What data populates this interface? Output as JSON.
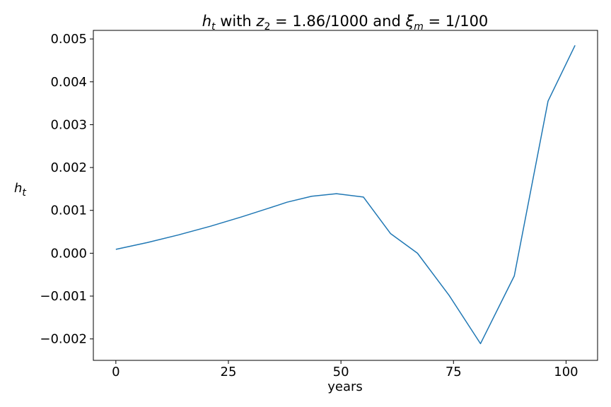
{
  "chart_data": {
    "type": "line",
    "title": {
      "var": "h",
      "var_sub": "t",
      "part1": " with ",
      "z": "z",
      "z_sub": "2",
      "z_val": " = 1.86/1000",
      "part2": " and ",
      "xi": "ξ",
      "xi_sub": "m",
      "xi_val": " = 1/100"
    },
    "xlabel": "years",
    "ylabel": {
      "var": "h",
      "sub": "t"
    },
    "xlim": [
      -5,
      107
    ],
    "ylim": [
      -0.0025,
      0.0052
    ],
    "x_ticks": [
      0,
      25,
      50,
      75,
      100
    ],
    "x_tick_labels": [
      "0",
      "25",
      "50",
      "75",
      "100"
    ],
    "y_ticks": [
      -0.002,
      -0.001,
      0.0,
      0.001,
      0.002,
      0.003,
      0.004,
      0.005
    ],
    "y_tick_labels": [
      "−0.002",
      "−0.001",
      "0.000",
      "0.001",
      "0.002",
      "0.003",
      "0.004",
      "0.005"
    ],
    "grid": false,
    "series": [
      {
        "color": "#1f77b4",
        "x": [
          0,
          7,
          14,
          21,
          28,
          36,
          38,
          43.5,
          49,
          55,
          61,
          67,
          74,
          81,
          88.5,
          96,
          102
        ],
        "y": [
          9e-05,
          0.00025,
          0.00043,
          0.00063,
          0.00085,
          0.00112,
          0.00119,
          0.00133,
          0.00139,
          0.00131,
          0.00046,
          0.0,
          -0.00098,
          -0.00211,
          -0.00053,
          0.00355,
          0.00485
        ]
      }
    ]
  }
}
